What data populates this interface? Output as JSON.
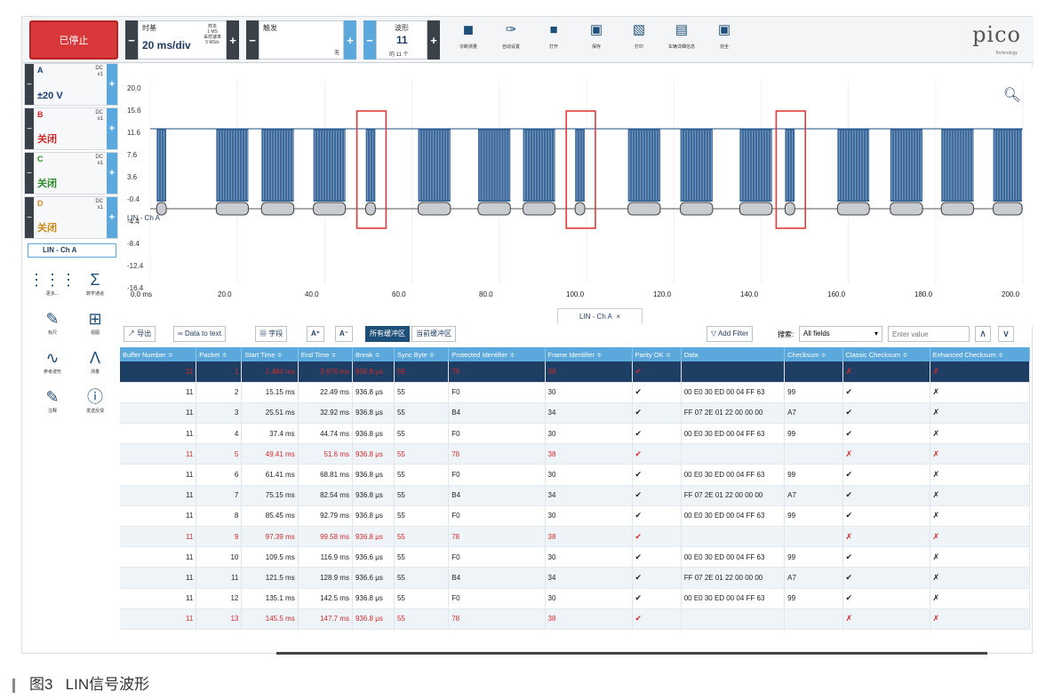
{
  "toolbar": {
    "stop_label": "已停止",
    "timebase_label": "时基",
    "timebase_value": "20 ms/div",
    "sample_info": [
      "样本",
      "1 MS",
      "采样速率",
      "5 MS/s"
    ],
    "trigger_label": "触发",
    "trigger_value": "无",
    "waveform_label": "波形",
    "waveform_value": "11",
    "waveform_count": "的 11 个",
    "tools": [
      {
        "icon": "car-icon",
        "label": "诊断测量"
      },
      {
        "icon": "wrench-icon",
        "label": "自动设置"
      },
      {
        "icon": "folder-icon",
        "label": "打开"
      },
      {
        "icon": "save-icon",
        "label": "保存"
      },
      {
        "icon": "printer-icon",
        "label": "打印"
      },
      {
        "icon": "clipboard-icon",
        "label": "车辆详细信息"
      },
      {
        "icon": "fullscreen-icon",
        "label": "完全"
      }
    ],
    "brand": "pico",
    "brand_sub": "Technology"
  },
  "channels": [
    {
      "name": "A",
      "coupling": "DC",
      "probe": "x1",
      "value": "±20 V",
      "color": "#1a3c6e"
    },
    {
      "name": "B",
      "coupling": "DC",
      "probe": "x1",
      "value": "关闭",
      "color": "#d02a2a"
    },
    {
      "name": "C",
      "coupling": "DC",
      "probe": "x1",
      "value": "关闭",
      "color": "#2a8a2a"
    },
    {
      "name": "D",
      "coupling": "DC",
      "probe": "x1",
      "value": "关闭",
      "color": "#c98a1a"
    }
  ],
  "decoder_tab": "LIN - Ch A",
  "side_tools": [
    {
      "icon": "grid-dots-icon",
      "label": "更多..."
    },
    {
      "icon": "sigma-icon",
      "label": "数学通道"
    },
    {
      "icon": "pencil-icon",
      "label": "标尺"
    },
    {
      "icon": "grid-icon",
      "label": "视图"
    },
    {
      "icon": "waveform-icon",
      "label": "参考波形"
    },
    {
      "icon": "compass-icon",
      "label": "测量"
    },
    {
      "icon": "note-icon",
      "label": "注释"
    },
    {
      "icon": "info-icon",
      "label": "发送反馈"
    }
  ],
  "scope": {
    "y_ticks": [
      "20.0",
      "15.6",
      "11.6",
      "7.6",
      "3.6",
      "-0.4",
      "-4.4",
      "-8.4",
      "-12.4",
      "-16.4"
    ],
    "x_ticks": [
      "0.0 ms",
      "20.0",
      "40.0",
      "60.0",
      "80.0",
      "100.0",
      "120.0",
      "140.0",
      "160.0",
      "180.0",
      "200.0"
    ],
    "lin_label": "LIN - Ch A",
    "tab_title": "LIN - Ch A",
    "tab_close": "×"
  },
  "table_tools": {
    "export": "导出",
    "data_to_text": "Data to text",
    "fields": "字段",
    "all_buffers": "所有缓冲区",
    "current_buffer": "当前缓冲区",
    "add_filter": "Add Filter",
    "search_label": "搜索:",
    "search_field": "All fields",
    "search_placeholder": "Enter value",
    "font_up": "A",
    "font_down": "A"
  },
  "table": {
    "headers": [
      "Buffer Number ≑",
      "Packet ≑",
      "Start Time ≑",
      "End Time ≑",
      "Break ≑",
      "Sync Byte ≑",
      "Protected Identifier ≑",
      "Frame Identifier ≑",
      "Parity OK ≑",
      "Data",
      "Checksum ≑",
      "Classic Checksum ≑",
      "Enhanced Checksum ≑"
    ],
    "rows": [
      {
        "buf": "11",
        "pkt": "1",
        "start": "1.484 ms",
        "end": "3.676 ms",
        "brk": "936.8 μs",
        "sync": "55",
        "pid": "78",
        "fid": "38",
        "parity": "✔",
        "data": "",
        "cs": "",
        "classic": "✗",
        "enhanced": "✗",
        "kind": "sel"
      },
      {
        "buf": "11",
        "pkt": "2",
        "start": "15.15 ms",
        "end": "22.49 ms",
        "brk": "936.8 μs",
        "sync": "55",
        "pid": "F0",
        "fid": "30",
        "parity": "✔",
        "data": "00 E0 30 ED 00 04 FF 63",
        "cs": "99",
        "classic": "✔",
        "enhanced": "✗",
        "kind": "norm"
      },
      {
        "buf": "11",
        "pkt": "3",
        "start": "25.51 ms",
        "end": "32.92 ms",
        "brk": "936.8 μs",
        "sync": "55",
        "pid": "B4",
        "fid": "34",
        "parity": "✔",
        "data": "FF 07 2E 01 22 00 00 00",
        "cs": "A7",
        "classic": "✔",
        "enhanced": "✗",
        "kind": "alt"
      },
      {
        "buf": "11",
        "pkt": "4",
        "start": "37.4 ms",
        "end": "44.74 ms",
        "brk": "936.8 μs",
        "sync": "55",
        "pid": "F0",
        "fid": "30",
        "parity": "✔",
        "data": "00 E0 30 ED 00 04 FF 63",
        "cs": "99",
        "classic": "✔",
        "enhanced": "✗",
        "kind": "norm"
      },
      {
        "buf": "11",
        "pkt": "5",
        "start": "49.41 ms",
        "end": "51.6 ms",
        "brk": "936.8 μs",
        "sync": "55",
        "pid": "78",
        "fid": "38",
        "parity": "✔",
        "data": "",
        "cs": "",
        "classic": "✗",
        "enhanced": "✗",
        "kind": "err alt"
      },
      {
        "buf": "11",
        "pkt": "6",
        "start": "61.41 ms",
        "end": "68.81 ms",
        "brk": "936.8 μs",
        "sync": "55",
        "pid": "F0",
        "fid": "30",
        "parity": "✔",
        "data": "00 E0 30 ED 00 04 FF 63",
        "cs": "99",
        "classic": "✔",
        "enhanced": "✗",
        "kind": "norm"
      },
      {
        "buf": "11",
        "pkt": "7",
        "start": "75.15 ms",
        "end": "82.54 ms",
        "brk": "936.8 μs",
        "sync": "55",
        "pid": "B4",
        "fid": "34",
        "parity": "✔",
        "data": "FF 07 2E 01 22 00 00 00",
        "cs": "A7",
        "classic": "✔",
        "enhanced": "✗",
        "kind": "alt"
      },
      {
        "buf": "11",
        "pkt": "8",
        "start": "85.45 ms",
        "end": "92.79 ms",
        "brk": "936.8 μs",
        "sync": "55",
        "pid": "F0",
        "fid": "30",
        "parity": "✔",
        "data": "00 E0 30 ED 00 04 FF 63",
        "cs": "99",
        "classic": "✔",
        "enhanced": "✗",
        "kind": "norm"
      },
      {
        "buf": "11",
        "pkt": "9",
        "start": "97.39 ms",
        "end": "99.58 ms",
        "brk": "936.8 μs",
        "sync": "55",
        "pid": "78",
        "fid": "38",
        "parity": "✔",
        "data": "",
        "cs": "",
        "classic": "✗",
        "enhanced": "✗",
        "kind": "err alt"
      },
      {
        "buf": "11",
        "pkt": "10",
        "start": "109.5 ms",
        "end": "116.9 ms",
        "brk": "936.6 μs",
        "sync": "55",
        "pid": "F0",
        "fid": "30",
        "parity": "✔",
        "data": "00 E0 30 ED 00 04 FF 63",
        "cs": "99",
        "classic": "✔",
        "enhanced": "✗",
        "kind": "norm"
      },
      {
        "buf": "11",
        "pkt": "11",
        "start": "121.5 ms",
        "end": "128.9 ms",
        "brk": "936.6 μs",
        "sync": "55",
        "pid": "B4",
        "fid": "34",
        "parity": "✔",
        "data": "FF 07 2E 01 22 00 00 00",
        "cs": "A7",
        "classic": "✔",
        "enhanced": "✗",
        "kind": "alt"
      },
      {
        "buf": "11",
        "pkt": "12",
        "start": "135.1 ms",
        "end": "142.5 ms",
        "brk": "936.8 μs",
        "sync": "55",
        "pid": "F0",
        "fid": "30",
        "parity": "✔",
        "data": "00 E0 30 ED 00 04 FF 63",
        "cs": "99",
        "classic": "✔",
        "enhanced": "✗",
        "kind": "norm"
      },
      {
        "buf": "11",
        "pkt": "13",
        "start": "145.5 ms",
        "end": "147.7 ms",
        "brk": "936.8 μs",
        "sync": "55",
        "pid": "78",
        "fid": "38",
        "parity": "✔",
        "data": "",
        "cs": "",
        "classic": "✗",
        "enhanced": "✗",
        "kind": "err alt"
      }
    ]
  },
  "caption": {
    "figure": "图3",
    "title": "LIN信号波形"
  }
}
